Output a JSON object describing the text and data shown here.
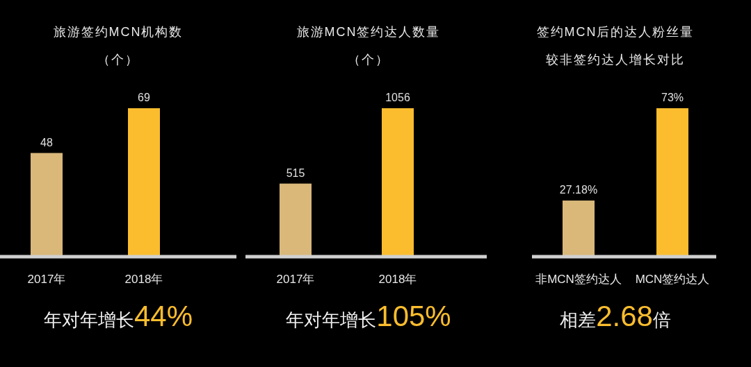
{
  "chart_data": [
    {
      "type": "bar",
      "title": "旅游签约MCN机构数",
      "subtitle": "（个）",
      "categories": [
        "2017年",
        "2018年"
      ],
      "values": [
        48,
        69
      ],
      "colors": [
        "#d9b87a",
        "#fbbd2e"
      ],
      "data_labels": true,
      "annotations": [
        "年对年增长44%"
      ]
    },
    {
      "type": "bar",
      "title": "旅游MCN签约达人数量",
      "subtitle": "（个）",
      "categories": [
        "2017年",
        "2018年"
      ],
      "values": [
        515,
        1056
      ],
      "colors": [
        "#d9b87a",
        "#fbbd2e"
      ],
      "data_labels": true,
      "annotations": [
        "年对年增长105%"
      ]
    },
    {
      "type": "bar",
      "title": "签约MCN后的达人粉丝量",
      "subtitle": "较非签约达人增长对比",
      "categories": [
        "非MCN签约达人",
        "MCN签约达人"
      ],
      "values": [
        27.18,
        73
      ],
      "value_labels": [
        "27.18%",
        "73%"
      ],
      "colors": [
        "#d9b87a",
        "#fbbd2e"
      ],
      "annotations": [
        "相差2.68倍"
      ]
    }
  ]
}
